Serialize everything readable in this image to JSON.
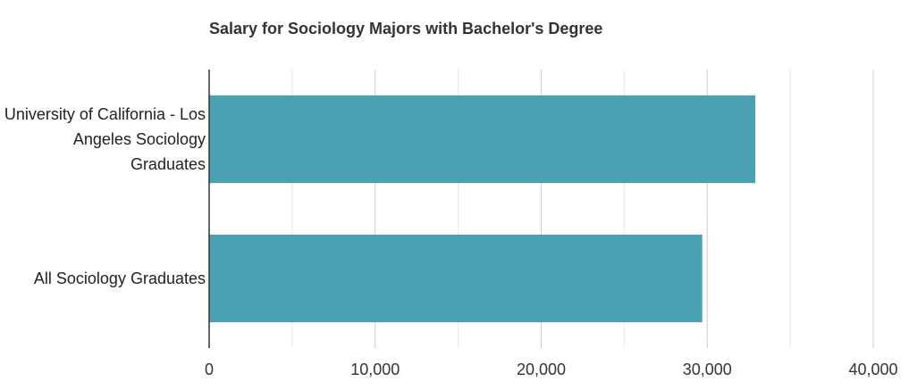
{
  "chart_data": {
    "type": "bar",
    "orientation": "horizontal",
    "title": "Salary for Sociology Majors with Bachelor's Degree",
    "categories": [
      "University of California - Los Angeles Sociology Graduates",
      "All Sociology Graduates"
    ],
    "values": [
      32900,
      29700
    ],
    "color": "#4ba0b1",
    "xlim": [
      0,
      40000
    ],
    "xticks": [
      0,
      {
        "value": 10000,
        "label": "10,000"
      },
      {
        "value": 20000,
        "label": "20,000"
      },
      {
        "value": 30000,
        "label": "30,000"
      },
      {
        "value": 40000,
        "label": "40,000"
      }
    ],
    "xticks_minor": [
      5000,
      15000,
      25000,
      35000
    ],
    "grid": true
  }
}
